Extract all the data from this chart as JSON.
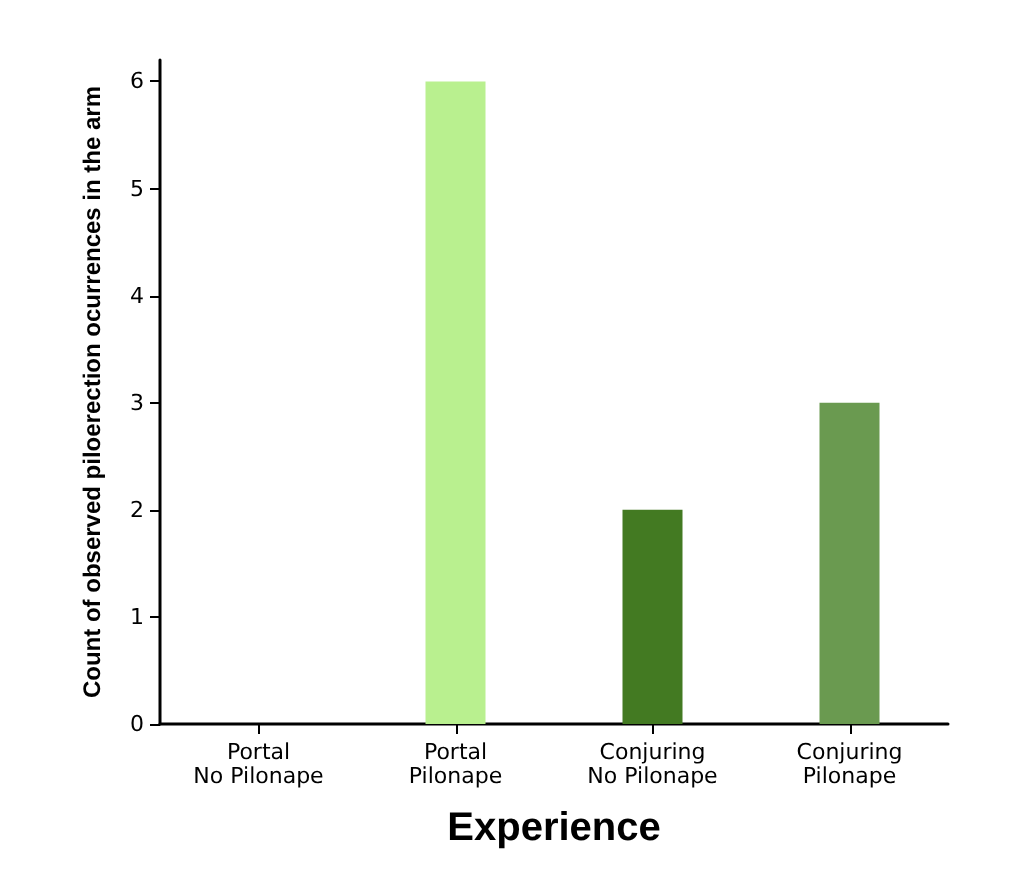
{
  "chart_data": {
    "type": "bar",
    "xlabel": "Experience",
    "ylabel": "Count of observed piloerection ocurrences in the arm",
    "categories": [
      "Portal\nNo Pilonape",
      "Portal\nPilonape",
      "Conjuring\nNo Pilonape",
      "Conjuring\nPilonape"
    ],
    "values": [
      0,
      6,
      2,
      3
    ],
    "colors": [
      "#8fc06a",
      "#b9f08f",
      "#437a22",
      "#6a9a50"
    ],
    "ylim": [
      0,
      6.2
    ],
    "yticks": [
      0,
      1,
      2,
      3,
      4,
      5,
      6
    ],
    "grid": false
  }
}
